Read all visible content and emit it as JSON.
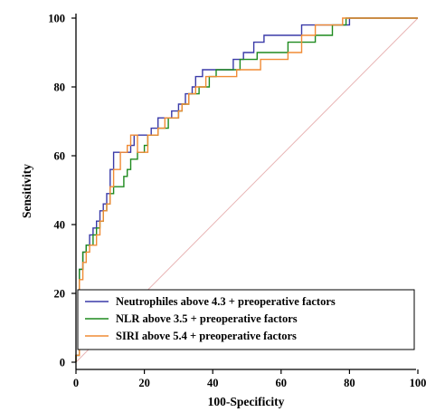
{
  "chart_data": {
    "type": "line",
    "xlabel": "100-Specificity",
    "ylabel": "Sensitivity",
    "xlim": [
      0,
      100
    ],
    "ylim": [
      0,
      100
    ],
    "x_ticks": [
      "0",
      "20",
      "40",
      "60",
      "80",
      "100"
    ],
    "y_ticks": [
      "0",
      "20",
      "40",
      "60",
      "80",
      "100"
    ],
    "reference_line": {
      "from": [
        0,
        0
      ],
      "to": [
        100,
        100
      ],
      "color": "#e8b4b4"
    },
    "legend_position": "bottom-right",
    "series": [
      {
        "name": "Neutrophiles above 4.3 + preoperative factors",
        "color": "#3a3aa8",
        "points": [
          [
            0,
            0
          ],
          [
            0,
            2
          ],
          [
            1,
            2
          ],
          [
            1,
            20
          ],
          [
            1,
            27
          ],
          [
            2,
            27
          ],
          [
            2,
            32
          ],
          [
            3,
            32
          ],
          [
            3,
            34
          ],
          [
            4,
            34
          ],
          [
            4,
            37
          ],
          [
            5,
            37
          ],
          [
            5,
            39
          ],
          [
            6,
            39
          ],
          [
            6,
            41
          ],
          [
            7,
            41
          ],
          [
            7,
            44
          ],
          [
            8,
            44
          ],
          [
            8,
            46
          ],
          [
            9,
            46
          ],
          [
            9,
            49
          ],
          [
            10,
            49
          ],
          [
            10,
            51
          ],
          [
            10,
            56
          ],
          [
            11,
            56
          ],
          [
            11,
            61
          ],
          [
            13,
            61
          ],
          [
            15,
            61
          ],
          [
            16,
            61
          ],
          [
            16,
            63
          ],
          [
            17,
            63
          ],
          [
            17,
            66
          ],
          [
            19,
            66
          ],
          [
            20,
            66
          ],
          [
            22,
            66
          ],
          [
            22,
            68
          ],
          [
            24,
            68
          ],
          [
            24,
            71
          ],
          [
            26,
            71
          ],
          [
            28,
            71
          ],
          [
            28,
            73
          ],
          [
            30,
            73
          ],
          [
            30,
            75
          ],
          [
            32,
            75
          ],
          [
            32,
            78
          ],
          [
            34,
            78
          ],
          [
            34,
            80
          ],
          [
            35,
            80
          ],
          [
            35,
            83
          ],
          [
            37,
            83
          ],
          [
            37,
            85
          ],
          [
            40,
            85
          ],
          [
            43,
            85
          ],
          [
            46,
            85
          ],
          [
            46,
            88
          ],
          [
            49,
            88
          ],
          [
            49,
            90
          ],
          [
            52,
            90
          ],
          [
            52,
            93
          ],
          [
            55,
            93
          ],
          [
            55,
            95
          ],
          [
            59,
            95
          ],
          [
            62,
            95
          ],
          [
            65,
            95
          ],
          [
            66,
            95
          ],
          [
            66,
            98
          ],
          [
            70,
            98
          ],
          [
            73,
            98
          ],
          [
            77,
            98
          ],
          [
            80,
            98
          ],
          [
            80,
            100
          ],
          [
            100,
            100
          ]
        ]
      },
      {
        "name": "NLR above 3.5 + preoperative factors",
        "color": "#1e8a1e",
        "points": [
          [
            0,
            0
          ],
          [
            0,
            2
          ],
          [
            1,
            2
          ],
          [
            1,
            22
          ],
          [
            1,
            27
          ],
          [
            2,
            27
          ],
          [
            2,
            32
          ],
          [
            3,
            32
          ],
          [
            3,
            34
          ],
          [
            4,
            34
          ],
          [
            5,
            34
          ],
          [
            5,
            37
          ],
          [
            6,
            37
          ],
          [
            6,
            39
          ],
          [
            7,
            39
          ],
          [
            7,
            41
          ],
          [
            8,
            41
          ],
          [
            8,
            44
          ],
          [
            9,
            44
          ],
          [
            9,
            46
          ],
          [
            10,
            46
          ],
          [
            10,
            49
          ],
          [
            11,
            49
          ],
          [
            11,
            51
          ],
          [
            12,
            51
          ],
          [
            14,
            51
          ],
          [
            14,
            54
          ],
          [
            15,
            54
          ],
          [
            15,
            56
          ],
          [
            16,
            56
          ],
          [
            16,
            59
          ],
          [
            18,
            59
          ],
          [
            18,
            61
          ],
          [
            19,
            61
          ],
          [
            20,
            61
          ],
          [
            20,
            63
          ],
          [
            21,
            63
          ],
          [
            21,
            66
          ],
          [
            24,
            66
          ],
          [
            24,
            68
          ],
          [
            27,
            68
          ],
          [
            27,
            71
          ],
          [
            30,
            71
          ],
          [
            30,
            73
          ],
          [
            31,
            73
          ],
          [
            31,
            75
          ],
          [
            33,
            75
          ],
          [
            33,
            78
          ],
          [
            36,
            78
          ],
          [
            36,
            80
          ],
          [
            39,
            80
          ],
          [
            39,
            83
          ],
          [
            41,
            83
          ],
          [
            41,
            85
          ],
          [
            44,
            85
          ],
          [
            48,
            85
          ],
          [
            48,
            88
          ],
          [
            53,
            88
          ],
          [
            53,
            90
          ],
          [
            58,
            90
          ],
          [
            62,
            90
          ],
          [
            62,
            93
          ],
          [
            66,
            93
          ],
          [
            70,
            93
          ],
          [
            70,
            95
          ],
          [
            75,
            95
          ],
          [
            75,
            98
          ],
          [
            79,
            98
          ],
          [
            79,
            100
          ],
          [
            100,
            100
          ]
        ]
      },
      {
        "name": "SIRI above 5.4 + preoperative factors",
        "color": "#f08b35",
        "points": [
          [
            0,
            0
          ],
          [
            0,
            2
          ],
          [
            1,
            2
          ],
          [
            1,
            20
          ],
          [
            1,
            24
          ],
          [
            2,
            24
          ],
          [
            2,
            29
          ],
          [
            3,
            29
          ],
          [
            3,
            32
          ],
          [
            4,
            32
          ],
          [
            4,
            34
          ],
          [
            5,
            34
          ],
          [
            6,
            34
          ],
          [
            6,
            37
          ],
          [
            7,
            37
          ],
          [
            7,
            41
          ],
          [
            8,
            41
          ],
          [
            8,
            44
          ],
          [
            9,
            44
          ],
          [
            9,
            46
          ],
          [
            10,
            46
          ],
          [
            10,
            51
          ],
          [
            11,
            51
          ],
          [
            11,
            56
          ],
          [
            13,
            56
          ],
          [
            13,
            61
          ],
          [
            15,
            61
          ],
          [
            15,
            63
          ],
          [
            16,
            63
          ],
          [
            16,
            66
          ],
          [
            18,
            66
          ],
          [
            18,
            61
          ],
          [
            21,
            61
          ],
          [
            21,
            66
          ],
          [
            24,
            66
          ],
          [
            24,
            68
          ],
          [
            26,
            68
          ],
          [
            26,
            71
          ],
          [
            30,
            71
          ],
          [
            30,
            73
          ],
          [
            31,
            73
          ],
          [
            31,
            75
          ],
          [
            33,
            75
          ],
          [
            33,
            78
          ],
          [
            35,
            78
          ],
          [
            35,
            80
          ],
          [
            38,
            80
          ],
          [
            38,
            83
          ],
          [
            41,
            83
          ],
          [
            44,
            83
          ],
          [
            47,
            83
          ],
          [
            47,
            85
          ],
          [
            50,
            85
          ],
          [
            54,
            85
          ],
          [
            54,
            88
          ],
          [
            59,
            88
          ],
          [
            62,
            88
          ],
          [
            62,
            90
          ],
          [
            66,
            90
          ],
          [
            66,
            95
          ],
          [
            70,
            95
          ],
          [
            70,
            98
          ],
          [
            75,
            98
          ],
          [
            78,
            98
          ],
          [
            78,
            100
          ],
          [
            100,
            100
          ]
        ]
      }
    ]
  }
}
